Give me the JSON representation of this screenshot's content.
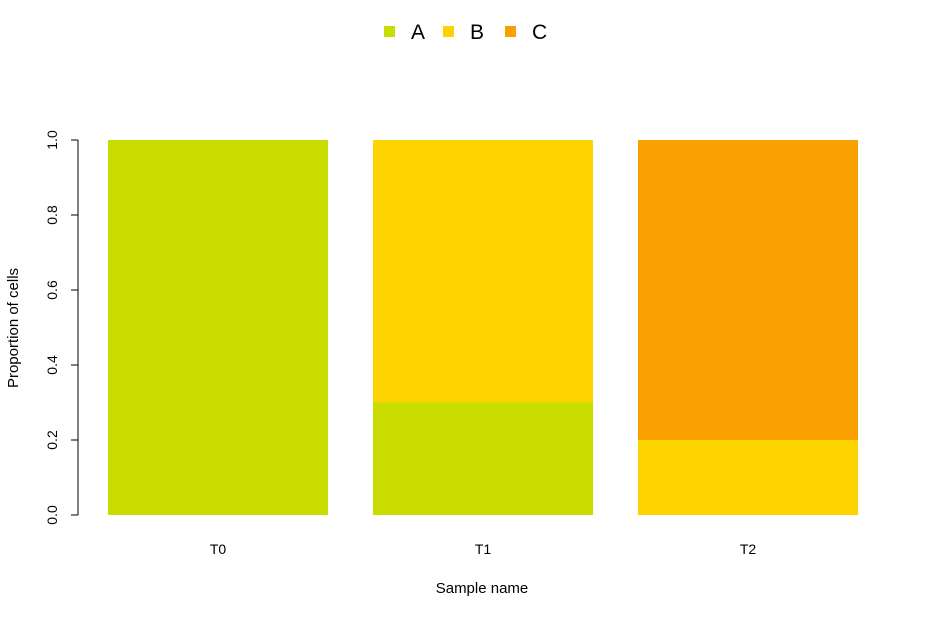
{
  "chart_data": {
    "type": "bar",
    "stacked": true,
    "categories": [
      "T0",
      "T1",
      "T2"
    ],
    "series": [
      {
        "name": "A",
        "color": "#C8DC00",
        "values": [
          1.0,
          0.3,
          0.0
        ]
      },
      {
        "name": "B",
        "color": "#FDD300",
        "values": [
          0.0,
          0.7,
          0.2
        ]
      },
      {
        "name": "C",
        "color": "#F9A100",
        "values": [
          0.0,
          0.0,
          0.8
        ]
      }
    ],
    "xlabel": "Sample name",
    "ylabel": "Proportion of cells",
    "ylim": [
      0,
      1
    ],
    "yticks": [
      "0.0",
      "0.2",
      "0.4",
      "0.6",
      "0.8",
      "1.0"
    ],
    "legend_position": "top-center",
    "grid": false
  }
}
